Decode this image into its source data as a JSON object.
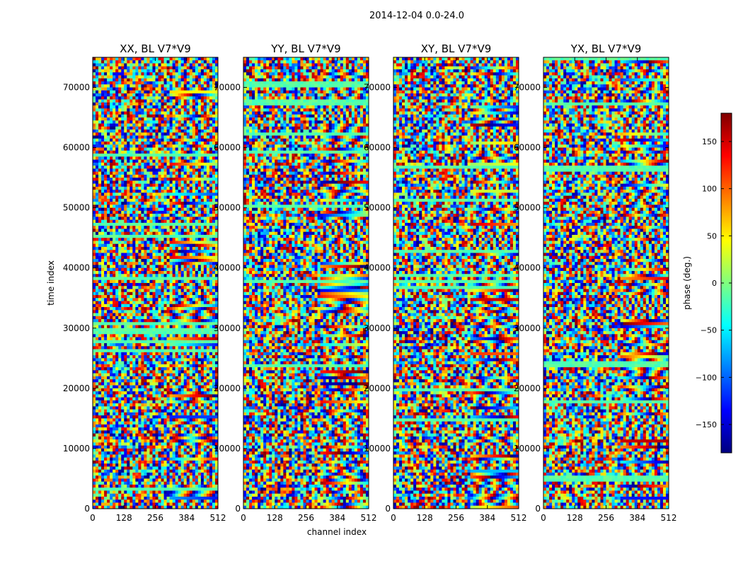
{
  "figure_title": "2014-12-04 0.0-24.0",
  "colorbar": {
    "label": "phase (deg.)",
    "range": [
      -180,
      180
    ],
    "ticks": [
      150,
      100,
      50,
      0,
      -50,
      -100,
      -150
    ],
    "tick_labels": [
      "150",
      "100",
      "50",
      "0",
      "−50",
      "−100",
      "−150"
    ],
    "colormap": "jet",
    "colors": [
      "#00007f",
      "#0000ff",
      "#007fff",
      "#00ffff",
      "#7fff7f",
      "#ffff00",
      "#ff7f00",
      "#ff0000",
      "#7f0000"
    ]
  },
  "chart_data": [
    {
      "type": "heatmap",
      "title": "XX, BL V7*V9",
      "xlabel": "",
      "ylabel": "time index",
      "xlim": [
        0,
        512
      ],
      "ylim": [
        0,
        75000
      ],
      "x_ticks": [
        0,
        128,
        256,
        384,
        512
      ],
      "y_ticks": [
        0,
        10000,
        20000,
        30000,
        40000,
        50000,
        60000,
        70000
      ],
      "value": "phase (deg.)"
    },
    {
      "type": "heatmap",
      "title": "YY, BL V7*V9",
      "xlabel": "channel index",
      "ylabel": "",
      "xlim": [
        0,
        512
      ],
      "ylim": [
        0,
        75000
      ],
      "x_ticks": [
        0,
        128,
        256,
        384,
        512
      ],
      "y_ticks": [
        0,
        10000,
        20000,
        30000,
        40000,
        50000,
        60000,
        70000
      ],
      "value": "phase (deg.)"
    },
    {
      "type": "heatmap",
      "title": "XY, BL V7*V9",
      "xlabel": "",
      "ylabel": "",
      "xlim": [
        0,
        512
      ],
      "ylim": [
        0,
        75000
      ],
      "x_ticks": [
        0,
        128,
        256,
        384,
        512
      ],
      "y_ticks": [
        0,
        10000,
        20000,
        30000,
        40000,
        50000,
        60000,
        70000
      ],
      "value": "phase (deg.)"
    },
    {
      "type": "heatmap",
      "title": "YX, BL V7*V9",
      "xlabel": "",
      "ylabel": "",
      "xlim": [
        0,
        512
      ],
      "ylim": [
        0,
        75000
      ],
      "x_ticks": [
        0,
        128,
        256,
        384,
        512
      ],
      "y_ticks": [
        0,
        10000,
        20000,
        30000,
        40000,
        50000,
        60000,
        70000
      ],
      "value": "phase (deg.)"
    }
  ]
}
